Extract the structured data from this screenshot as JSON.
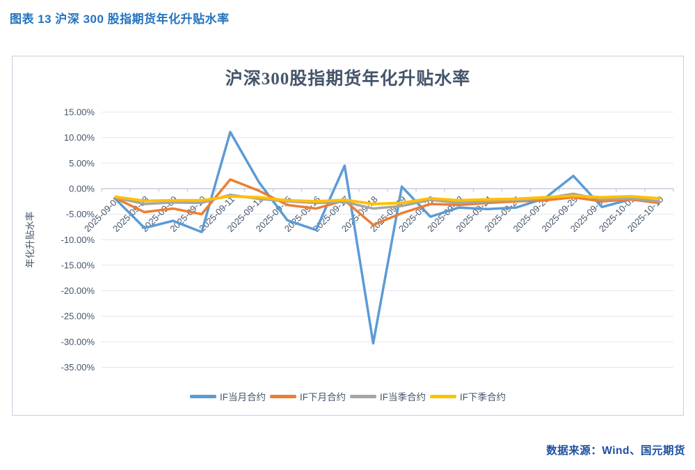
{
  "page": {
    "header": "图表 13  沪深 300 股指期货年化升贴水率",
    "source": "数据来源：Wind、国元期货"
  },
  "chart_data": {
    "type": "line",
    "title": "沪深300股指期货年化升贴水率",
    "ylabel": "年化升贴水率",
    "ylim": [
      -35,
      15
    ],
    "ytick_step": 5,
    "ytick_format": "0.00%",
    "grid": true,
    "legend_position": "bottom",
    "categories": [
      "2025-09-05",
      "2025-09-08",
      "2025-09-09",
      "2025-09-10",
      "2025-09-11",
      "2025-09-12",
      "2025-09-15",
      "2025-09-16",
      "2025-09-17",
      "2025-09-18",
      "2025-09-19",
      "2025-09-22",
      "2025-09-23",
      "2025-09-24",
      "2025-09-25",
      "2025-09-26",
      "2025-09-29",
      "2025-09-30",
      "2025-10-09",
      "2025-10-10"
    ],
    "series": [
      {
        "name": "IF当月合约",
        "color": "#5B9BD5",
        "values": [
          -2.1,
          -7.7,
          -6.3,
          -8.5,
          11.1,
          1.3,
          -6.2,
          -8.1,
          4.5,
          -30.3,
          0.4,
          -5.5,
          -3.7,
          -4.0,
          -3.7,
          -1.9,
          2.5,
          -3.6,
          -2.1,
          -2.7
        ]
      },
      {
        "name": "IF下月合约",
        "color": "#ED7D31",
        "values": [
          -1.9,
          -4.6,
          -3.9,
          -5.0,
          1.8,
          -0.4,
          -3.2,
          -3.9,
          -2.3,
          -7.1,
          -4.8,
          -3.0,
          -3.2,
          -2.8,
          -2.5,
          -2.3,
          -1.7,
          -2.5,
          -2.1,
          -2.8
        ]
      },
      {
        "name": "IF当季合约",
        "color": "#A5A5A5",
        "values": [
          -1.8,
          -3.0,
          -2.7,
          -2.8,
          -1.2,
          -2.0,
          -2.5,
          -2.8,
          -2.6,
          -3.9,
          -3.4,
          -2.2,
          -2.8,
          -2.5,
          -2.3,
          -1.9,
          -1.0,
          -2.1,
          -1.9,
          -2.5
        ]
      },
      {
        "name": "IF下季合约",
        "color": "#FFC000",
        "values": [
          -1.6,
          -2.4,
          -2.3,
          -2.3,
          -1.5,
          -1.7,
          -2.3,
          -2.5,
          -2.2,
          -3.0,
          -2.8,
          -1.9,
          -2.3,
          -2.1,
          -2.0,
          -1.7,
          -1.4,
          -1.7,
          -1.5,
          -1.9
        ]
      }
    ]
  }
}
